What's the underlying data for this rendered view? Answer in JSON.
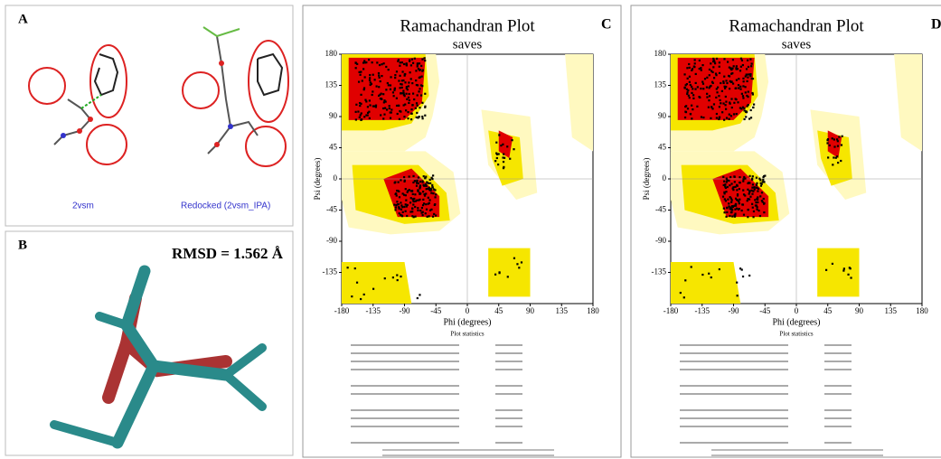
{
  "panels": [
    {
      "label": "A",
      "captions": [
        "2vsm",
        "Redocked (2vsm_IPA)"
      ]
    },
    {
      "label": "B",
      "annotation": "RMSD = 1.562 Å"
    },
    {
      "label": "C",
      "title": "Ramachandran Plot",
      "subtitle": "saves",
      "y_axis_label": "Psi (degrees)",
      "x_axis_label": "Phi (degrees)",
      "xticks": [
        -180,
        -135,
        -90,
        -45,
        0,
        45,
        90,
        135,
        180
      ],
      "yticks": [
        180,
        135,
        90,
        45,
        0,
        -45,
        -90,
        -135
      ],
      "stats_title": "Plot statistics"
    },
    {
      "label": "D",
      "title": "Ramachandran Plot",
      "subtitle": "saves",
      "y_axis_label": "Psi (degrees)",
      "x_axis_label": "Phi (degrees)",
      "xticks": [
        -180,
        -135,
        -90,
        -45,
        0,
        45,
        90,
        135,
        180
      ],
      "yticks": [
        180,
        135,
        90,
        45,
        0,
        -45,
        -90,
        -135
      ],
      "stats_title": "Plot statistics"
    }
  ]
}
